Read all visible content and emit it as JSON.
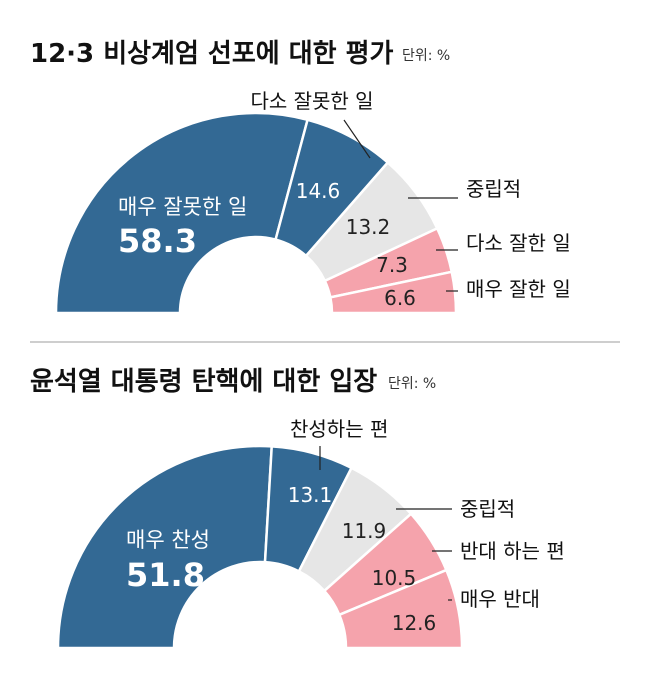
{
  "chart_data": [
    {
      "type": "pie",
      "title": "12·3 비상계엄 선포에 대한 평가",
      "unit": "단위: %",
      "categories": [
        "매우 잘못한 일",
        "다소 잘못한 일",
        "중립적",
        "다소 잘한 일",
        "매우 잘한 일"
      ],
      "values": [
        58.3,
        14.6,
        13.2,
        7.3,
        6.6
      ],
      "value_labels": [
        "58.3",
        "14.6",
        "13.2",
        "7.3",
        "6.6"
      ],
      "colors": [
        "#336994",
        "#336994",
        "#e6e6e6",
        "#f5a3ac",
        "#f5a3ac"
      ]
    },
    {
      "type": "pie",
      "title": "윤석열 대통령 탄핵에 대한 입장",
      "unit": "단위: %",
      "categories": [
        "매우 찬성",
        "찬성하는 편",
        "중립적",
        "반대 하는 편",
        "매우 반대"
      ],
      "values": [
        51.8,
        13.1,
        11.9,
        10.5,
        12.6
      ],
      "value_labels": [
        "51.8",
        "13.1",
        "11.9",
        "10.5",
        "12.6"
      ],
      "colors": [
        "#336994",
        "#336994",
        "#e6e6e6",
        "#f5a3ac",
        "#f5a3ac"
      ]
    }
  ],
  "divider_color": "#bdbdbd"
}
